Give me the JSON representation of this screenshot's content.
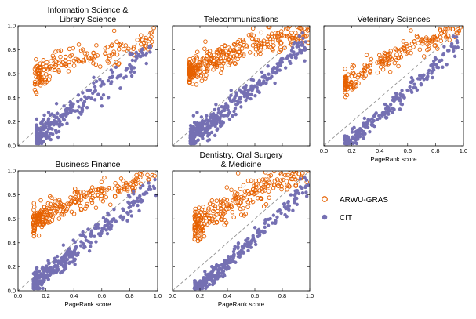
{
  "chart_data": [
    {
      "type": "scatter",
      "title": "Information Science & Library Science",
      "title_lines": [
        "Information Science &",
        "Library Science"
      ],
      "xlim": [
        0,
        1
      ],
      "ylim": [
        0,
        1
      ],
      "xticks": [],
      "yticks": [
        "0.0",
        "0.2",
        "0.4",
        "0.6",
        "0.8",
        "1.0"
      ],
      "xlabel": "",
      "series_gen": [
        {
          "name": "ARWU-GRAS",
          "count": 180,
          "x_range": [
            0.12,
            0.98
          ],
          "x_skew": 1.8,
          "y_fn": [
            0.52,
            0.38,
            0.6
          ],
          "y_noise": 0.06
        },
        {
          "name": "CIT",
          "count": 260,
          "x_range": [
            0.13,
            0.97
          ],
          "x_skew": 2.2,
          "y_fn": [
            0.02,
            0.9,
            1.0
          ],
          "y_noise": 0.06
        }
      ]
    },
    {
      "type": "scatter",
      "title": "Telecommunications",
      "title_lines": [
        "Telecommunications"
      ],
      "xlim": [
        0,
        1
      ],
      "ylim": [
        0,
        1
      ],
      "xticks": [],
      "yticks": [],
      "xlabel": "",
      "series_gen": [
        {
          "name": "ARWU-GRAS",
          "count": 320,
          "x_range": [
            0.12,
            1.0
          ],
          "x_skew": 1.9,
          "y_fn": [
            0.52,
            0.45,
            0.55
          ],
          "y_noise": 0.05
        },
        {
          "name": "CIT",
          "count": 380,
          "x_range": [
            0.13,
            0.98
          ],
          "x_skew": 2.1,
          "y_fn": [
            0.02,
            0.95,
            1.05
          ],
          "y_noise": 0.05
        }
      ]
    },
    {
      "type": "scatter",
      "title": "Veterinary Sciences",
      "title_lines": [
        "Veterinary Sciences"
      ],
      "xlim": [
        0,
        1
      ],
      "ylim": [
        0,
        1
      ],
      "xticks": [
        "0.0",
        "0.2",
        "0.4",
        "0.6",
        "0.8",
        "1.0"
      ],
      "yticks": [],
      "xlabel": "PageRank score",
      "series_gen": [
        {
          "name": "ARWU-GRAS",
          "count": 200,
          "x_range": [
            0.15,
            0.98
          ],
          "x_skew": 1.7,
          "y_fn": [
            0.42,
            0.62,
            0.7
          ],
          "y_noise": 0.05
        },
        {
          "name": "CIT",
          "count": 240,
          "x_range": [
            0.15,
            0.96
          ],
          "x_skew": 1.9,
          "y_fn": [
            -0.05,
            1.05,
            1.1
          ],
          "y_noise": 0.04
        }
      ]
    },
    {
      "type": "scatter",
      "title": "Business Finance",
      "title_lines": [
        "Business Finance"
      ],
      "xlim": [
        0,
        1
      ],
      "ylim": [
        0,
        1
      ],
      "xticks": [
        "0.0",
        "0.2",
        "0.4",
        "0.6",
        "0.8",
        "1.0"
      ],
      "yticks": [
        "0.0",
        "0.2",
        "0.4",
        "0.6",
        "0.8",
        "1.0"
      ],
      "xlabel": "PageRank score",
      "series_gen": [
        {
          "name": "ARWU-GRAS",
          "count": 260,
          "x_range": [
            0.11,
            0.98
          ],
          "x_skew": 1.9,
          "y_fn": [
            0.5,
            0.48,
            0.6
          ],
          "y_noise": 0.05
        },
        {
          "name": "CIT",
          "count": 320,
          "x_range": [
            0.11,
            0.99
          ],
          "x_skew": 2.0,
          "y_fn": [
            0.02,
            0.95,
            1.0
          ],
          "y_noise": 0.05
        }
      ]
    },
    {
      "type": "scatter",
      "title": "Dentistry, Oral Surgery & Medicine",
      "title_lines": [
        "Dentistry, Oral Surgery",
        "& Medicine"
      ],
      "xlim": [
        0,
        1
      ],
      "ylim": [
        0,
        1
      ],
      "xticks": [
        "0.0",
        "0.2",
        "0.4",
        "0.6",
        "0.8",
        "1.0"
      ],
      "yticks": [],
      "xlabel": "PageRank score",
      "series_gen": [
        {
          "name": "ARWU-GRAS",
          "count": 260,
          "x_range": [
            0.16,
            0.99
          ],
          "x_skew": 1.8,
          "y_fn": [
            0.42,
            0.62,
            0.7
          ],
          "y_noise": 0.06
        },
        {
          "name": "CIT",
          "count": 320,
          "x_range": [
            0.16,
            0.99
          ],
          "x_skew": 1.9,
          "y_fn": [
            -0.08,
            1.08,
            1.08
          ],
          "y_noise": 0.04
        }
      ]
    }
  ],
  "legend": {
    "items": [
      {
        "label": "ARWU-GRAS",
        "color": "#e66101",
        "marker": "open-circle"
      },
      {
        "label": "CIT",
        "color": "#7570b3",
        "marker": "filled-circle"
      }
    ]
  },
  "colors": {
    "arwu": "#e66101",
    "cit": "#7570b3",
    "diagonal": "#888888"
  }
}
